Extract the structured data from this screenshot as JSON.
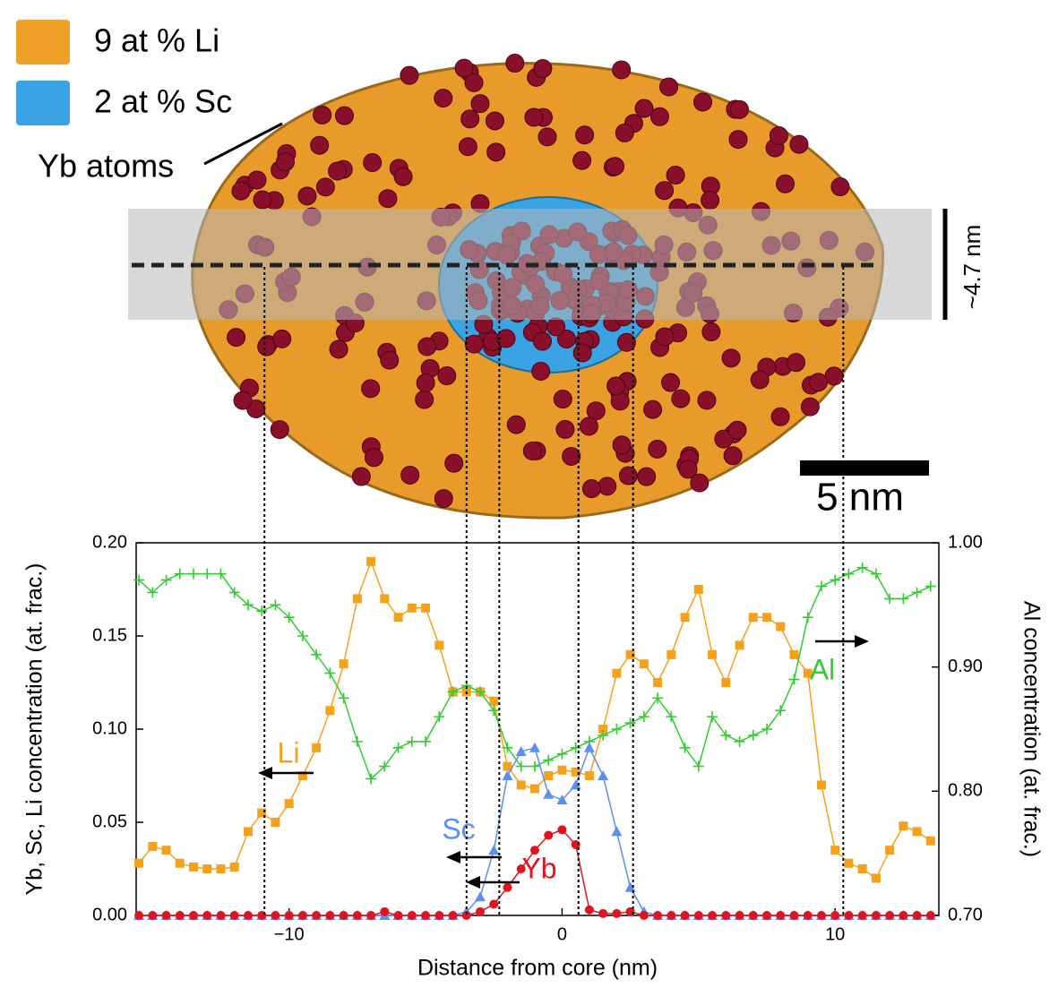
{
  "illustration": {
    "legend": [
      {
        "text": "9 at % Li",
        "color": "#f0a12a"
      },
      {
        "text": "2 at % Sc",
        "color": "#3aa3e3"
      }
    ],
    "atoms_label": "Yb atoms",
    "height_label": "~4.7 nm",
    "scale_label": "5 nm"
  },
  "chart_data": {
    "type": "line",
    "xlabel": "Distance from core (nm)",
    "ylabel": "Yb, Sc, Li concentration (at. frac.)",
    "y2label": "Al concentration (at. frac.)",
    "xlim": [
      -15.6,
      13.8
    ],
    "xticks": [
      {
        "value": -10,
        "label": "−10"
      },
      0,
      10
    ],
    "ylim": [
      0,
      0.2
    ],
    "yticks": [
      {
        "value": 0,
        "label": "0.00"
      },
      {
        "value": 0.05,
        "label": "0.05"
      },
      {
        "value": 0.1,
        "label": "0.10"
      },
      {
        "value": 0.15,
        "label": "0.15"
      },
      {
        "value": 0.2,
        "label": "0.20"
      }
    ],
    "y2lim": [
      0.7,
      1.0
    ],
    "y2ticks": [
      {
        "value": 0.7,
        "label": "0.70"
      },
      {
        "value": 0.8,
        "label": "0.80"
      },
      {
        "value": 0.9,
        "label": "0.90"
      },
      {
        "value": 1.0,
        "label": "1.00"
      }
    ],
    "reference_lines": [
      -10.9,
      -3.5,
      -2.3,
      0.6,
      2.6,
      10.3
    ],
    "x": [
      -15.5,
      -15,
      -14.5,
      -14,
      -13.5,
      -13,
      -12.5,
      -12,
      -11.5,
      -11,
      -10.5,
      -10,
      -9.5,
      -9,
      -8.5,
      -8,
      -7.5,
      -7,
      -6.5,
      -6,
      -5.5,
      -5,
      -4.5,
      -4,
      -3.5,
      -3,
      -2.5,
      -2,
      -1.5,
      -1,
      -0.5,
      0,
      0.5,
      1,
      1.5,
      2,
      2.5,
      3,
      3.5,
      4,
      4.5,
      5,
      5.5,
      6,
      6.5,
      7,
      7.5,
      8,
      8.5,
      9,
      9.5,
      10,
      10.5,
      11,
      11.5,
      12,
      12.5,
      13,
      13.5
    ],
    "series": [
      {
        "name": "Li",
        "color": "#f5a11c",
        "marker": "square",
        "values": [
          0.028,
          0.037,
          0.035,
          0.028,
          0.026,
          0.025,
          0.025,
          0.026,
          0.045,
          0.055,
          0.05,
          0.06,
          0.075,
          0.09,
          0.11,
          0.135,
          0.17,
          0.19,
          0.17,
          0.16,
          0.165,
          0.165,
          0.145,
          0.12,
          0.12,
          0.12,
          0.115,
          0.08,
          0.07,
          0.068,
          0.075,
          0.078,
          0.077,
          0.075,
          0.1,
          0.13,
          0.14,
          0.135,
          0.125,
          0.14,
          0.16,
          0.175,
          0.14,
          0.125,
          0.145,
          0.16,
          0.16,
          0.155,
          0.14,
          0.13,
          0.07,
          0.035,
          0.028,
          0.025,
          0.02,
          0.035,
          0.048,
          0.045,
          0.04
        ]
      },
      {
        "name": "Al",
        "color": "#33cc33",
        "marker": "plus",
        "axis": "y2",
        "values": [
          0.97,
          0.96,
          0.97,
          0.975,
          0.975,
          0.975,
          0.975,
          0.96,
          0.95,
          0.945,
          0.95,
          0.94,
          0.925,
          0.91,
          0.895,
          0.875,
          0.84,
          0.81,
          0.82,
          0.835,
          0.84,
          0.84,
          0.86,
          0.88,
          0.885,
          0.88,
          0.865,
          0.835,
          0.82,
          0.82,
          0.825,
          0.83,
          0.835,
          0.84,
          0.845,
          0.85,
          0.855,
          0.86,
          0.875,
          0.86,
          0.835,
          0.82,
          0.86,
          0.845,
          0.84,
          0.845,
          0.85,
          0.865,
          0.89,
          0.94,
          0.965,
          0.97,
          0.975,
          0.98,
          0.975,
          0.955,
          0.955,
          0.96,
          0.965
        ]
      },
      {
        "name": "Sc",
        "color": "#5b8ff0",
        "marker": "triangle",
        "values": [
          0,
          0,
          0,
          0,
          0,
          0,
          0,
          0,
          0,
          0,
          0,
          0,
          0,
          0,
          0,
          0,
          0,
          0,
          0,
          0,
          0,
          0,
          0,
          0,
          0.002,
          0.01,
          0.035,
          0.075,
          0.088,
          0.09,
          0.065,
          0.062,
          0.07,
          0.09,
          0.075,
          0.045,
          0.015,
          0.002,
          0,
          0,
          0,
          0,
          0,
          0,
          0,
          0,
          0,
          0,
          0,
          0,
          0,
          0,
          0,
          0,
          0,
          0,
          0,
          0,
          0
        ]
      },
      {
        "name": "Yb",
        "color": "#e0141e",
        "marker": "circle",
        "values": [
          0,
          0,
          0,
          0,
          0,
          0,
          0,
          0,
          0,
          0,
          0,
          0,
          0,
          0,
          0,
          0,
          0,
          0,
          0.002,
          0,
          0,
          0,
          0,
          0,
          0,
          0.002,
          0.006,
          0.015,
          0.025,
          0.035,
          0.043,
          0.046,
          0.038,
          0.003,
          0.001,
          0.001,
          0.002,
          0,
          0,
          0,
          0,
          0,
          0,
          0,
          0,
          0,
          0,
          0,
          0,
          0,
          0,
          0,
          0,
          0,
          0,
          0,
          0,
          0,
          0
        ]
      }
    ]
  }
}
